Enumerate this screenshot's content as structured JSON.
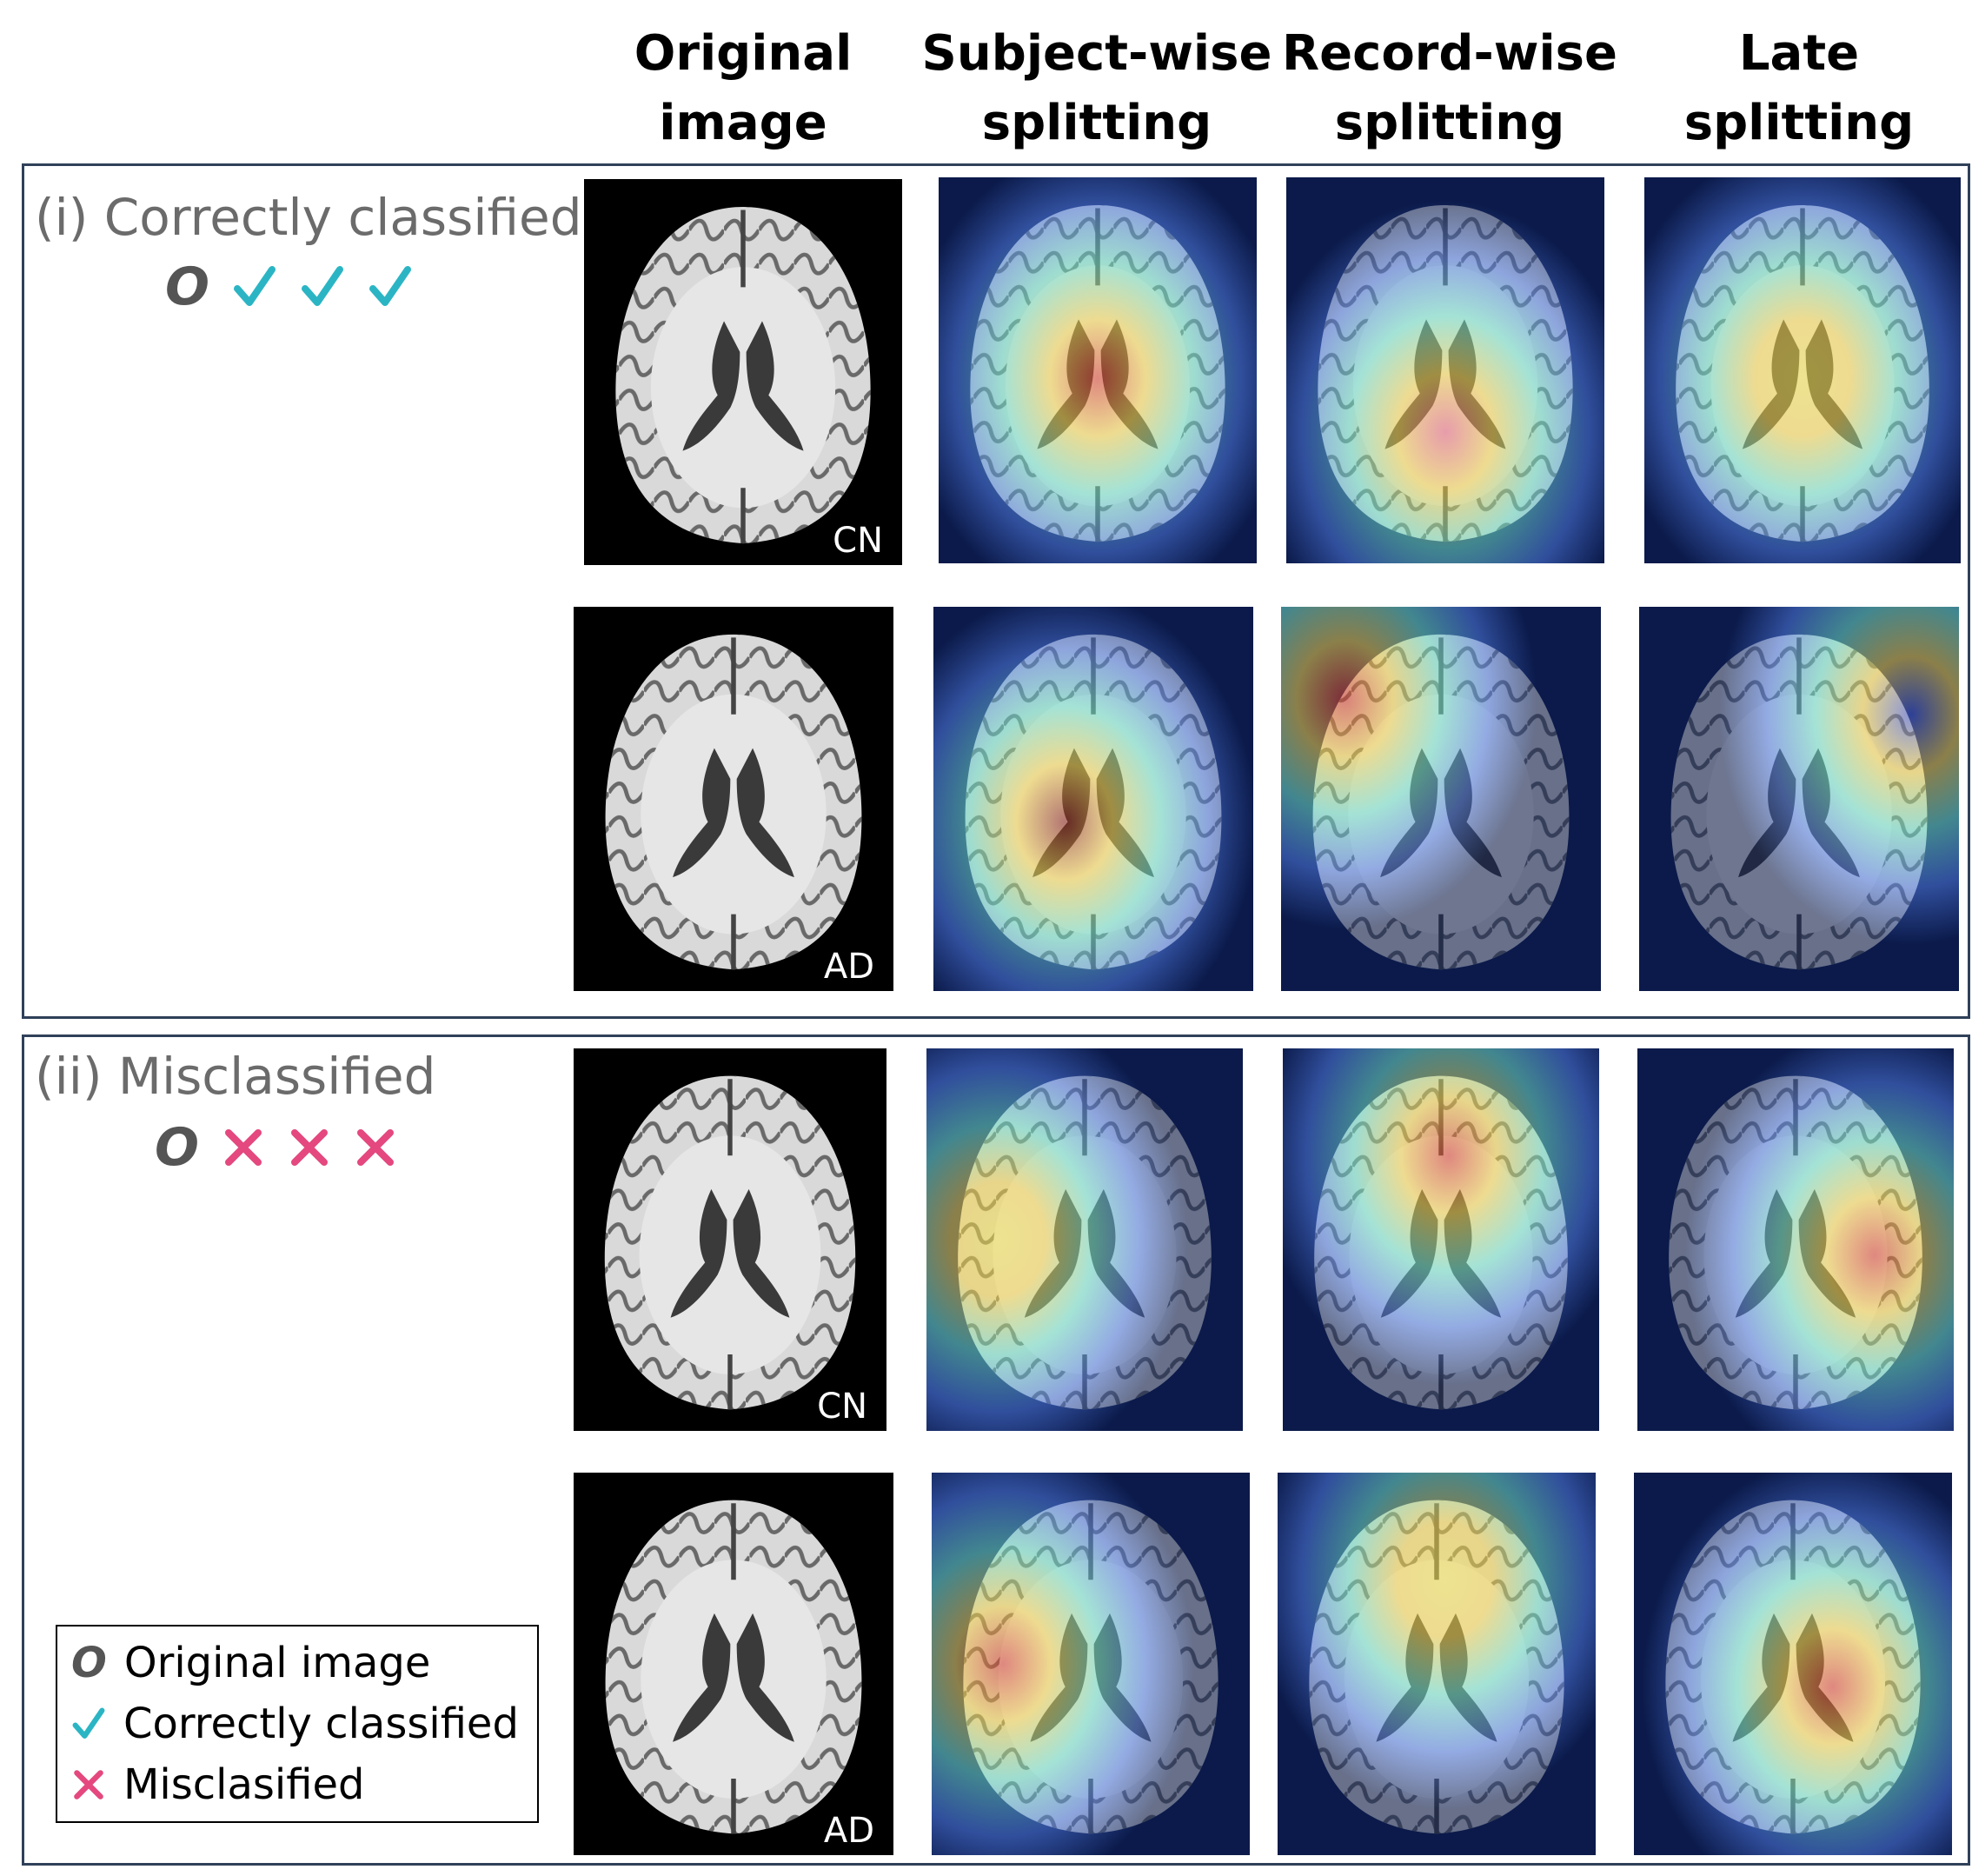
{
  "columns": [
    {
      "label": "Original\nimage"
    },
    {
      "label": "Subject-wise\nsplitting"
    },
    {
      "label": "Record-wise\nsplitting"
    },
    {
      "label": "Late\nsplitting"
    }
  ],
  "sections": [
    {
      "title": "(i) Correctly classified",
      "marks": [
        "O",
        "check",
        "check",
        "check"
      ],
      "rows": [
        {
          "label": "CN",
          "heatmaps": [
            {
              "hot": "center",
              "shade": "red"
            },
            {
              "hot": "lower-center",
              "shade": "pink"
            },
            {
              "hot": "center",
              "shade": "yellow"
            }
          ]
        },
        {
          "label": "AD",
          "heatmaps": [
            {
              "hot": "left-center",
              "shade": "dark-red"
            },
            {
              "hot": "edges",
              "shade": "red"
            },
            {
              "hot": "right-edge",
              "shade": "blue"
            }
          ]
        }
      ]
    },
    {
      "title": "(ii) Misclassified",
      "marks": [
        "O",
        "x",
        "x",
        "x"
      ],
      "rows": [
        {
          "label": "CN",
          "heatmaps": [
            {
              "hot": "left",
              "shade": "yellow"
            },
            {
              "hot": "top-center",
              "shade": "red"
            },
            {
              "hot": "right",
              "shade": "red"
            }
          ]
        },
        {
          "label": "AD",
          "heatmaps": [
            {
              "hot": "left",
              "shade": "red"
            },
            {
              "hot": "top-center",
              "shade": "yellow"
            },
            {
              "hot": "center-right",
              "shade": "red"
            }
          ]
        }
      ]
    }
  ],
  "legend": {
    "items": [
      {
        "symbol": "O",
        "label": "Original image"
      },
      {
        "symbol": "check",
        "label": "Correctly classified"
      },
      {
        "symbol": "x",
        "label": "Misclasified"
      }
    ]
  },
  "colors": {
    "check": "#2bb5c4",
    "cross": "#e4487e",
    "title_gray": "#6b6b6b",
    "panel_border": "#2f4059",
    "heatmap_bg": "#0b1a4a"
  }
}
